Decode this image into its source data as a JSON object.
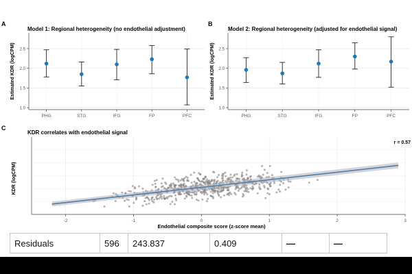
{
  "chart_data": [
    {
      "type": "scatter",
      "panel_letter": "A",
      "title": "Model 1: Regional heterogeneity (no endothelial adjustment)",
      "ylabel": "Estimated KDR (logCPM)",
      "xlabel": "",
      "ylim": [
        0.95,
        2.9
      ],
      "yticks": [
        "1.0",
        "1.5",
        "2.0",
        "2.5"
      ],
      "categories": [
        "PHG",
        "STG",
        "IFG",
        "FP",
        "PFC"
      ],
      "estimates": [
        2.12,
        1.85,
        2.1,
        2.23,
        1.77
      ],
      "ci_low": [
        1.78,
        1.55,
        1.71,
        1.86,
        1.07
      ],
      "ci_high": [
        2.47,
        2.16,
        2.48,
        2.58,
        2.49
      ],
      "point_color": "#1f77b4",
      "grid": true
    },
    {
      "type": "scatter",
      "panel_letter": "B",
      "title": "Model 2: Regional heterogeneity (adjusted for endothelial signal)",
      "ylabel": "Estimated KDR (logCPM)",
      "xlabel": "",
      "ylim": [
        0.95,
        2.9
      ],
      "yticks": [
        "1.0",
        "1.5",
        "2.0",
        "2.5"
      ],
      "categories": [
        "PHG",
        "STG",
        "IFG",
        "FP",
        "PFC"
      ],
      "estimates": [
        1.96,
        1.87,
        2.12,
        2.3,
        2.17
      ],
      "ci_low": [
        1.64,
        1.6,
        1.77,
        1.98,
        1.52
      ],
      "ci_high": [
        2.27,
        2.15,
        2.47,
        2.65,
        2.8
      ],
      "point_color": "#1f77b4",
      "grid": true
    },
    {
      "type": "scatter",
      "panel_letter": "C",
      "title": "KDR correlates with endothelial signal",
      "ylabel": "KDR (logCPM)",
      "xlabel": "Endothelial composite score (z-score mean)",
      "annotation": "r = 0.57",
      "xlim": [
        -2.5,
        3.0
      ],
      "xticks": [
        "-2",
        "-1",
        "0",
        "1",
        "2",
        "3"
      ],
      "ylim": [
        0,
        6
      ],
      "fit_line": {
        "x": [
          -2.2,
          2.9
        ],
        "y": [
          0.8,
          3.8
        ]
      },
      "fit_color": "#4a7fb0",
      "point_color": "#808080",
      "n_points": 600,
      "grid": true
    }
  ],
  "residuals_row": {
    "label": "Residuals",
    "df": "596",
    "ss": "243.837",
    "ms": "0.409",
    "f": "—",
    "p": "—"
  }
}
